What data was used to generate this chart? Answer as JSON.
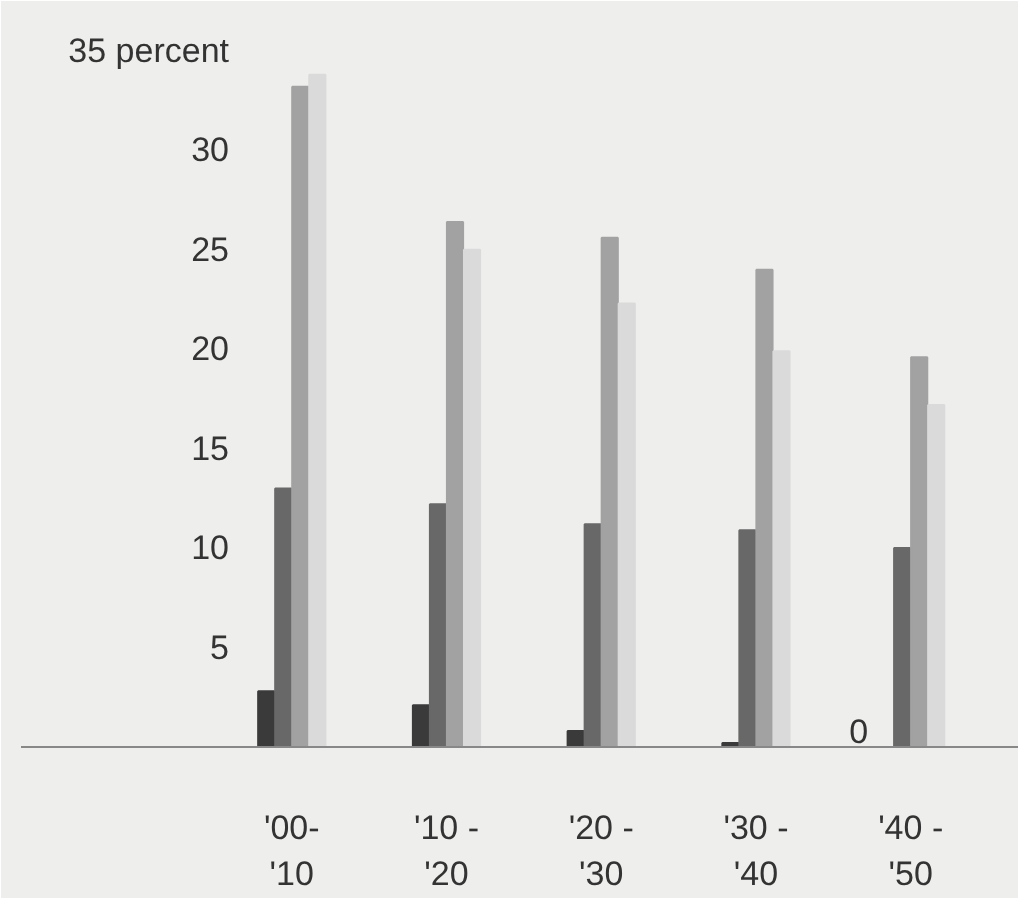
{
  "chart_data": {
    "type": "bar",
    "categories": [
      "'00-\n'10",
      "'10 -\n'20",
      "'20 -\n'30",
      "'30 -\n'40",
      "'40 -\n'50"
    ],
    "series": [
      {
        "color": "#3a3a3a",
        "values": [
          2.8,
          2.1,
          0.8,
          0.2,
          0
        ],
        "value_labels": [
          null,
          null,
          null,
          null,
          "0"
        ]
      },
      {
        "color": "#686868",
        "values": [
          13.0,
          12.2,
          11.2,
          10.9,
          10.0
        ]
      },
      {
        "color": "#a2a2a2",
        "values": [
          33.2,
          26.4,
          25.6,
          24.0,
          19.6
        ]
      },
      {
        "color": "#dadada",
        "values": [
          33.8,
          25.0,
          22.3,
          19.9,
          17.2
        ]
      }
    ],
    "ylim": [
      0,
      36
    ],
    "yticks": [
      5,
      10,
      15,
      20,
      25,
      30,
      {
        "value": 35,
        "label": "35 percent"
      }
    ],
    "grid": false
  }
}
